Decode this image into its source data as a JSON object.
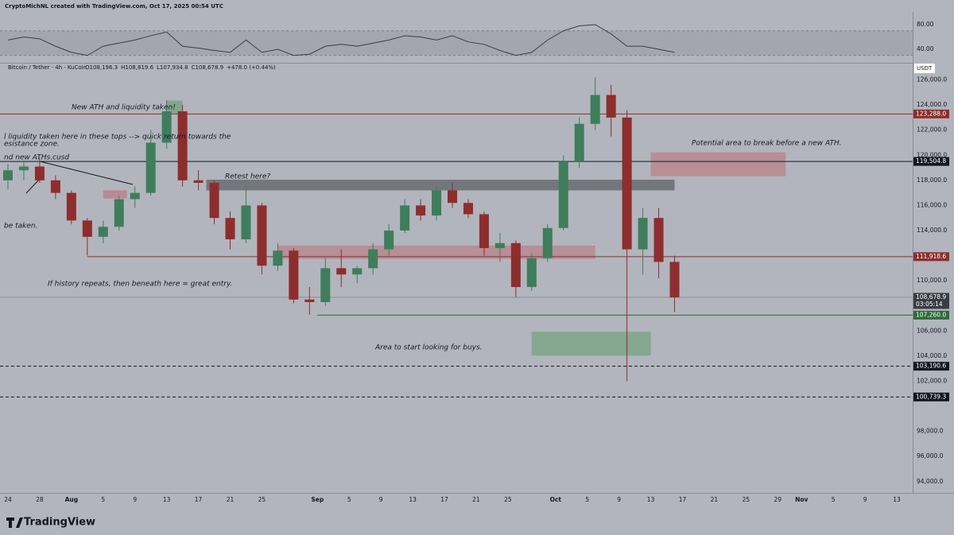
{
  "header": {
    "credit": "CryptoMichNL created with TradingView.com, Oct 17, 2025 00:54 UTC"
  },
  "legend": {
    "symbol": "Bitcoin / Tether · 4h · KuCoin",
    "items": [
      "O108,196.3",
      "H108,819.6",
      "L107,934.8",
      "C108,678.9",
      "+478.0 (+0.44%)"
    ]
  },
  "footer": {
    "brand": "TradingView"
  },
  "chart_data": [
    {
      "type": "candlestick",
      "currency": "USDT",
      "up_color": "#3f7d5c",
      "down_color": "#8e2d2d",
      "x": [
        "2025-07-24",
        "2025-07-26",
        "2025-07-28",
        "2025-07-30",
        "2025-08-01",
        "2025-08-03",
        "2025-08-05",
        "2025-08-07",
        "2025-08-09",
        "2025-08-11",
        "2025-08-13",
        "2025-08-15",
        "2025-08-17",
        "2025-08-19",
        "2025-08-21",
        "2025-08-23",
        "2025-08-25",
        "2025-08-27",
        "2025-08-29",
        "2025-08-31",
        "2025-09-02",
        "2025-09-04",
        "2025-09-06",
        "2025-09-08",
        "2025-09-10",
        "2025-09-12",
        "2025-09-14",
        "2025-09-16",
        "2025-09-18",
        "2025-09-20",
        "2025-09-22",
        "2025-09-24",
        "2025-09-26",
        "2025-09-28",
        "2025-09-30",
        "2025-10-02",
        "2025-10-04",
        "2025-10-06",
        "2025-10-08",
        "2025-10-10",
        "2025-10-12",
        "2025-10-14",
        "2025-10-16"
      ],
      "open": [
        118000,
        118800,
        119100,
        118000,
        117000,
        114800,
        113500,
        114300,
        116500,
        117000,
        121000,
        123500,
        118000,
        117800,
        115000,
        113300,
        116000,
        111200,
        112400,
        108500,
        108300,
        111000,
        110500,
        111000,
        112500,
        114000,
        116000,
        115200,
        117200,
        116200,
        115300,
        112600,
        113000,
        109500,
        111800,
        114200,
        119500,
        122500,
        124800,
        123000,
        112500,
        115000,
        111500
      ],
      "high": [
        119300,
        119600,
        119800,
        118400,
        117200,
        115000,
        114800,
        116800,
        117500,
        122000,
        124400,
        124000,
        118800,
        118000,
        115500,
        117500,
        116200,
        113000,
        112600,
        109500,
        111800,
        112500,
        111200,
        113000,
        114500,
        116500,
        116500,
        117500,
        117800,
        116500,
        115500,
        113800,
        113200,
        112200,
        114500,
        120000,
        123000,
        126200,
        125600,
        123600,
        115800,
        115800,
        112000
      ],
      "low": [
        117300,
        118000,
        117800,
        116500,
        114500,
        112000,
        113000,
        114000,
        115800,
        116800,
        120500,
        117500,
        117200,
        114500,
        112500,
        113000,
        110500,
        110800,
        108200,
        107300,
        108000,
        109500,
        109800,
        110500,
        112000,
        113800,
        114800,
        114800,
        115800,
        115000,
        112000,
        111500,
        108700,
        109200,
        111500,
        114000,
        119000,
        122000,
        121500,
        102000,
        110500,
        110200,
        107500
      ],
      "close": [
        118800,
        119100,
        118000,
        117000,
        114800,
        113500,
        114300,
        116500,
        117000,
        121000,
        123500,
        118000,
        117800,
        115000,
        113300,
        116000,
        111200,
        112400,
        108500,
        108300,
        111000,
        110500,
        111000,
        112500,
        114000,
        116000,
        115200,
        117200,
        116200,
        115300,
        112600,
        113000,
        109500,
        111800,
        114200,
        119500,
        122500,
        124800,
        123000,
        112500,
        115000,
        111500,
        108678.9
      ],
      "xlim": [
        "2025-07-23",
        "2025-11-15"
      ],
      "xticks": [
        {
          "value": "2025-07-24",
          "label": "24"
        },
        {
          "value": "2025-07-28",
          "label": "28"
        },
        {
          "value": "2025-08-01",
          "label": "Aug"
        },
        {
          "value": "2025-08-05",
          "label": "5"
        },
        {
          "value": "2025-08-09",
          "label": "9"
        },
        {
          "value": "2025-08-13",
          "label": "13"
        },
        {
          "value": "2025-08-17",
          "label": "17"
        },
        {
          "value": "2025-08-21",
          "label": "21"
        },
        {
          "value": "2025-08-25",
          "label": "25"
        },
        {
          "value": "2025-09-01",
          "label": "Sep"
        },
        {
          "value": "2025-09-05",
          "label": "5"
        },
        {
          "value": "2025-09-09",
          "label": "9"
        },
        {
          "value": "2025-09-13",
          "label": "13"
        },
        {
          "value": "2025-09-17",
          "label": "17"
        },
        {
          "value": "2025-09-21",
          "label": "21"
        },
        {
          "value": "2025-09-25",
          "label": "25"
        },
        {
          "value": "2025-10-01",
          "label": "Oct"
        },
        {
          "value": "2025-10-05",
          "label": "5"
        },
        {
          "value": "2025-10-09",
          "label": "9"
        },
        {
          "value": "2025-10-13",
          "label": "13"
        },
        {
          "value": "2025-10-17",
          "label": "17"
        },
        {
          "value": "2025-10-21",
          "label": "21"
        },
        {
          "value": "2025-10-25",
          "label": "25"
        },
        {
          "value": "2025-10-29",
          "label": "29"
        },
        {
          "value": "2025-11-01",
          "label": "Nov"
        },
        {
          "value": "2025-11-05",
          "label": "5"
        },
        {
          "value": "2025-11-09",
          "label": "9"
        },
        {
          "value": "2025-11-13",
          "label": "13"
        }
      ],
      "ylim": [
        93100,
        127300
      ],
      "yticks": [
        {
          "value": 126000,
          "label": "126,000.0"
        },
        {
          "value": 124000,
          "label": "124,000.0"
        },
        {
          "value": 122000,
          "label": "122,000.0"
        },
        {
          "value": 120000,
          "label": "120,000.0"
        },
        {
          "value": 118000,
          "label": "118,000.0"
        },
        {
          "value": 116000,
          "label": "116,000.0"
        },
        {
          "value": 114000,
          "label": "114,000.0"
        },
        {
          "value": 112000,
          "label": "112,000.0"
        },
        {
          "value": 110000,
          "label": "110,000.0"
        },
        {
          "value": 106000,
          "label": "106,000.0"
        },
        {
          "value": 104000,
          "label": "104,000.0"
        },
        {
          "value": 102000,
          "label": "102,000.0"
        },
        {
          "value": 98000,
          "label": "98,000.0"
        },
        {
          "value": 96000,
          "label": "96,000.0"
        },
        {
          "value": 94000,
          "label": "94,000.0"
        }
      ],
      "levels": [
        {
          "value": 123288.0,
          "label": "123,288.0",
          "color": "#8e2d2d",
          "dashed": false
        },
        {
          "value": 119504.8,
          "label": "119,504.8",
          "color": "#131722",
          "dashed": false
        },
        {
          "value": 111918.6,
          "label": "111,918.6",
          "color": "#8e2d2d",
          "dashed": false,
          "from": "2025-08-03"
        },
        {
          "value": 108678.9,
          "label": "108,678.9",
          "color": "#8a8d95",
          "dashed": false,
          "countdown": "03:05:14"
        },
        {
          "value": 107260.0,
          "label": "107,260.0",
          "color": "#2f6b3a",
          "dashed": false,
          "from": "2025-09-01"
        },
        {
          "value": 103190.6,
          "label": "103,190.6",
          "color": "#131722",
          "dashed": true
        },
        {
          "value": 100739.3,
          "label": "100,739.3",
          "color": "#131722",
          "dashed": true
        }
      ],
      "zones": [
        {
          "x": [
            "2025-08-18",
            "2025-10-16"
          ],
          "y": [
            117200,
            118050
          ],
          "color": "rgba(95,98,104,0.75)"
        },
        {
          "x": [
            "2025-08-05",
            "2025-08-08"
          ],
          "y": [
            116550,
            117200
          ],
          "color": "rgba(190,110,120,0.6)"
        },
        {
          "x": [
            "2025-08-27",
            "2025-10-06"
          ],
          "y": [
            111740,
            112800
          ],
          "color": "rgba(190,110,120,0.55)"
        },
        {
          "x": [
            "2025-10-13",
            "2025-10-30"
          ],
          "y": [
            118330,
            120230
          ],
          "color": "rgba(190,110,120,0.55)"
        },
        {
          "x": [
            "2025-09-28",
            "2025-10-13"
          ],
          "y": [
            104030,
            105930
          ],
          "color": "rgba(110,160,120,0.65)"
        },
        {
          "x": [
            "2025-08-13",
            "2025-08-15"
          ],
          "y": [
            123340,
            124350
          ],
          "color": "rgba(110,160,120,0.7)"
        }
      ],
      "annotations": [
        "New ATH and liquidity taken!",
        "l liquidity taken here in these tops --> quick return towards the",
        "esistance zone.",
        "nd new ATHs.cusd",
        "Retest here?",
        "be taken.",
        "If history repeats, then beneath here = great entry.",
        "Potential area to break before a new ATH.",
        "Area to start looking for buys."
      ]
    },
    {
      "type": "line",
      "color": "#3a3d45",
      "x": [
        "2025-07-24",
        "2025-07-26",
        "2025-07-28",
        "2025-07-30",
        "2025-08-01",
        "2025-08-03",
        "2025-08-05",
        "2025-08-07",
        "2025-08-09",
        "2025-08-11",
        "2025-08-13",
        "2025-08-15",
        "2025-08-17",
        "2025-08-19",
        "2025-08-21",
        "2025-08-23",
        "2025-08-25",
        "2025-08-27",
        "2025-08-29",
        "2025-08-31",
        "2025-09-02",
        "2025-09-04",
        "2025-09-06",
        "2025-09-08",
        "2025-09-10",
        "2025-09-12",
        "2025-09-14",
        "2025-09-16",
        "2025-09-18",
        "2025-09-20",
        "2025-09-22",
        "2025-09-24",
        "2025-09-26",
        "2025-09-28",
        "2025-09-30",
        "2025-10-02",
        "2025-10-04",
        "2025-10-06",
        "2025-10-08",
        "2025-10-10",
        "2025-10-12",
        "2025-10-14",
        "2025-10-16"
      ],
      "values": [
        55,
        60,
        57,
        45,
        35,
        30,
        45,
        50,
        55,
        62,
        68,
        45,
        42,
        38,
        35,
        55,
        35,
        40,
        30,
        32,
        45,
        48,
        45,
        50,
        55,
        62,
        60,
        55,
        62,
        52,
        48,
        38,
        30,
        35,
        55,
        70,
        78,
        80,
        65,
        45,
        45,
        40,
        35
      ],
      "ylim": [
        20,
        100
      ],
      "yticks": [
        {
          "value": 80,
          "label": "80.00"
        },
        {
          "value": 40,
          "label": "40.00"
        }
      ],
      "band": [
        30,
        70
      ]
    }
  ]
}
